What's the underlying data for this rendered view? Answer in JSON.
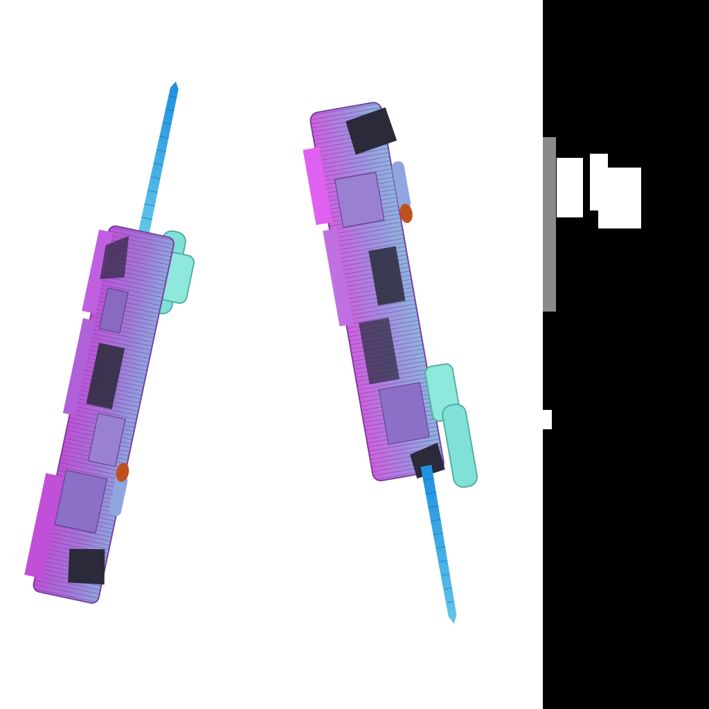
{
  "scene": {
    "background": "#ffffff",
    "models": [
      {
        "name": "ship-model-left",
        "colors": {
          "hull": "#b06fd8",
          "hull_dark": "#6a3a8c",
          "hull_edge": "#d48af0",
          "antenna": "#2fa9e6",
          "engine": "#7fe0d4",
          "thruster": "#c0501e",
          "panel": "#2a2a3a"
        }
      },
      {
        "name": "ship-model-right",
        "colors": {
          "hull": "#b48ae0",
          "hull_dark": "#5a3e80",
          "hull_edge": "#e06cf0",
          "antenna": "#2fa9e6",
          "engine": "#80e2d6",
          "thruster": "#c0501e",
          "panel": "#2a2a3a"
        }
      }
    ]
  },
  "side_panel": {
    "background": "#000000",
    "scrollbar_color": "#8a8a8a",
    "block_color": "#ffffff"
  }
}
